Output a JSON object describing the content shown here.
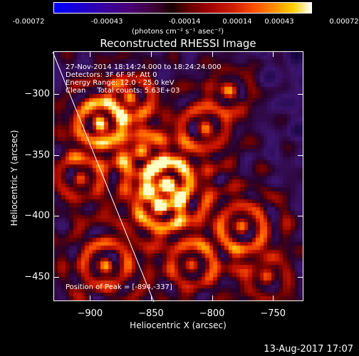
{
  "colorbar": {
    "ticks": [
      "-0.00072",
      "-0.00043",
      "-0.00014",
      "0.00014",
      "0.00043",
      "0.00072"
    ],
    "unit_label": "(photons cm⁻² s⁻¹ asec⁻²)"
  },
  "title": "Reconstructed RHESSI Image",
  "info": {
    "time_range": "27-Nov-2014 18:14:24.000 to 18:24:24.000",
    "detectors": "Detectors: 3F 6F 9F, Att 0",
    "energy_range": "Energy Range: 12.0 - 25.0 keV",
    "method_counts": "Clean     Total counts: 5.63E+03",
    "peak_position": "Position of Peak = [-894,-337]"
  },
  "axes": {
    "y_ticks": [
      "-300",
      "-350",
      "-400",
      "-450"
    ],
    "x_ticks": [
      "-900",
      "-850",
      "-800",
      "-750"
    ],
    "xlabel": "Heliocentric X (arcsec)",
    "ylabel": "Heliocentric Y (arcsec)",
    "xlim": [
      -930,
      -725
    ],
    "ylim": [
      -470,
      -265
    ]
  },
  "datestamp": "13-Aug-2017 17:07"
}
